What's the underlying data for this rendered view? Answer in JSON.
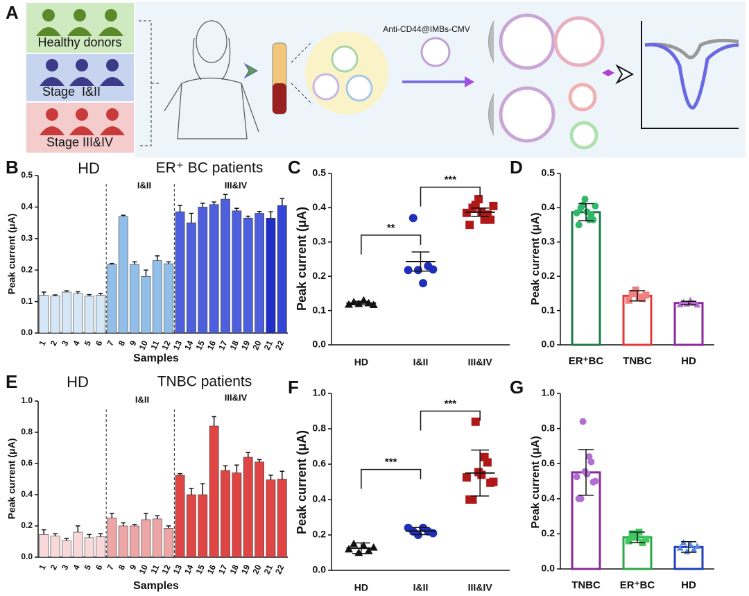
{
  "panel_a": {
    "label": "A",
    "groups": [
      "Healthy donors",
      "Stage  I&II",
      "Stage III&IV"
    ],
    "probe": "Anti-CD44@IMBs-CMV"
  },
  "chart_data": [
    {
      "type": "bar",
      "label": "B",
      "ylabel": "Peak current (μA)",
      "xlabel": "Samples",
      "annotations": [
        "HD",
        "ER⁺ BC patients",
        "I&II",
        "III&IV"
      ],
      "categories": [
        "1",
        "2",
        "3",
        "4",
        "5",
        "6",
        "7",
        "8",
        "9",
        "10",
        "11",
        "12",
        "13",
        "14",
        "15",
        "16",
        "17",
        "18",
        "19",
        "20",
        "21",
        "22"
      ],
      "values": [
        0.12,
        0.118,
        0.13,
        0.125,
        0.117,
        0.12,
        0.218,
        0.37,
        0.218,
        0.18,
        0.23,
        0.22,
        0.385,
        0.35,
        0.4,
        0.408,
        0.425,
        0.388,
        0.365,
        0.38,
        0.365,
        0.405
      ],
      "errors": [
        0.01,
        0.003,
        0.004,
        0.006,
        0.005,
        0.006,
        0.003,
        0.004,
        0.008,
        0.02,
        0.015,
        0.006,
        0.02,
        0.03,
        0.012,
        0.008,
        0.015,
        0.008,
        0.006,
        0.006,
        0.02,
        0.022
      ],
      "colors": [
        "#d5e6f6",
        "#d5e6f6",
        "#d5e6f6",
        "#d5e6f6",
        "#d5e6f6",
        "#d5e6f6",
        "#92bfea",
        "#92bfea",
        "#92bfea",
        "#92bfea",
        "#92bfea",
        "#92bfea",
        "#4d5fdc",
        "#4d5fdc",
        "#4d5fdc",
        "#4d5fdc",
        "#4d5fdc",
        "#4d5fdc",
        "#4d5fdc",
        "#4d5fdc",
        "#1f2fc8",
        "#3346d8"
      ],
      "ylim": [
        0,
        0.5
      ],
      "yticks": [
        {
          "value": 0,
          "label": "0.0"
        },
        0.1,
        0.2,
        0.3,
        0.4,
        0.5
      ]
    },
    {
      "type": "dotplot",
      "label": "C",
      "ylabel": "Peak current (μA)",
      "categories": [
        "HD",
        "I&II",
        "III&IV"
      ],
      "points": [
        [
          0.118,
          0.125,
          0.12,
          0.13,
          0.122,
          0.117
        ],
        [
          0.218,
          0.37,
          0.218,
          0.18,
          0.23,
          0.22
        ],
        [
          0.385,
          0.35,
          0.4,
          0.408,
          0.425,
          0.388,
          0.365,
          0.38,
          0.365,
          0.405
        ]
      ],
      "means": [
        0.122,
        0.243,
        0.387
      ],
      "errors": [
        0.005,
        0.028,
        0.012
      ],
      "colors": [
        "#111111",
        "#1f2fb8",
        "#b01818"
      ],
      "markers": [
        "triangle",
        "circle",
        "square"
      ],
      "significance": [
        {
          "between": [
            "HD",
            "I&II"
          ],
          "y": 0.32,
          "label": "**"
        },
        {
          "between": [
            "I&II",
            "III&IV"
          ],
          "y": 0.46,
          "label": "***"
        }
      ],
      "ylim": [
        0,
        0.5
      ],
      "yticks": [
        {
          "value": 0,
          "label": "0.0"
        },
        0.1,
        0.2,
        0.3,
        0.4,
        0.5
      ]
    },
    {
      "type": "barscatter",
      "label": "D",
      "ylabel": "Peak current (μA)",
      "categories": [
        "ER⁺BC",
        "TNBC",
        "HD"
      ],
      "values": [
        0.387,
        0.143,
        0.122
      ],
      "errors": [
        0.025,
        0.015,
        0.005
      ],
      "points": [
        [
          0.385,
          0.35,
          0.4,
          0.408,
          0.425,
          0.388,
          0.365,
          0.38,
          0.365,
          0.405
        ],
        [
          0.13,
          0.15,
          0.16,
          0.14,
          0.135,
          0.145
        ],
        [
          0.118,
          0.125,
          0.12,
          0.13,
          0.122,
          0.117
        ]
      ],
      "colors": [
        "#1e7a4a",
        "#e23a3a",
        "#8a2a9a"
      ],
      "point_colors": [
        "#2fb868",
        "#f08080",
        "#b070c8"
      ],
      "markers": [
        "circle",
        "square",
        "triangle"
      ],
      "ylim": [
        0,
        0.5
      ],
      "yticks": [
        {
          "value": 0,
          "label": "0.0"
        },
        0.1,
        0.2,
        0.3,
        0.4,
        0.5
      ]
    },
    {
      "type": "bar",
      "label": "E",
      "ylabel": "Peak current (μA)",
      "xlabel": "Samples",
      "annotations": [
        "HD",
        "TNBC patients",
        "I&II",
        "III&IV"
      ],
      "categories": [
        "1",
        "2",
        "3",
        "4",
        "5",
        "6",
        "7",
        "8",
        "9",
        "10",
        "11",
        "12",
        "13",
        "14",
        "15",
        "16",
        "17",
        "18",
        "19",
        "20",
        "21",
        "22"
      ],
      "values": [
        0.145,
        0.135,
        0.105,
        0.16,
        0.125,
        0.13,
        0.25,
        0.2,
        0.2,
        0.24,
        0.245,
        0.185,
        0.525,
        0.4,
        0.4,
        0.84,
        0.555,
        0.54,
        0.64,
        0.61,
        0.495,
        0.5
      ],
      "errors": [
        0.03,
        0.015,
        0.015,
        0.04,
        0.02,
        0.02,
        0.03,
        0.02,
        0.01,
        0.04,
        0.02,
        0.015,
        0.01,
        0.04,
        0.07,
        0.06,
        0.03,
        0.05,
        0.03,
        0.015,
        0.03,
        0.05
      ],
      "colors": [
        "#f8d8d8",
        "#f8d8d8",
        "#f8d8d8",
        "#f8d8d8",
        "#f8d8d8",
        "#f8d8d8",
        "#eea5a5",
        "#eea5a5",
        "#eea5a5",
        "#eea5a5",
        "#eea5a5",
        "#eea5a5",
        "#e04545",
        "#e04545",
        "#e04545",
        "#e04545",
        "#e04545",
        "#e04545",
        "#e04545",
        "#e04545",
        "#e04545",
        "#e04545"
      ],
      "ylim": [
        0,
        1
      ],
      "yticks": [
        {
          "value": 0,
          "label": "0.0"
        },
        0.2,
        0.4,
        0.6,
        0.8,
        {
          "value": 1,
          "label": "1.0"
        }
      ]
    },
    {
      "type": "dotplot",
      "label": "F",
      "ylabel": "Peak current (μA)",
      "categories": [
        "HD",
        "I&II",
        "III&IV"
      ],
      "points": [
        [
          0.12,
          0.15,
          0.1,
          0.14,
          0.11,
          0.13
        ],
        [
          0.24,
          0.22,
          0.2,
          0.24,
          0.22,
          0.21
        ],
        [
          0.525,
          0.4,
          0.4,
          0.84,
          0.555,
          0.54,
          0.64,
          0.61,
          0.495,
          0.5
        ]
      ],
      "means": [
        0.125,
        0.222,
        0.55
      ],
      "errors": [
        0.03,
        0.02,
        0.13
      ],
      "colors": [
        "#111111",
        "#1f2fb8",
        "#b01818"
      ],
      "markers": [
        "triangle",
        "circle",
        "square"
      ],
      "significance": [
        {
          "between": [
            "HD",
            "I&II"
          ],
          "y": 0.57,
          "label": "***"
        },
        {
          "between": [
            "I&II",
            "III&IV"
          ],
          "y": 0.9,
          "label": "***"
        }
      ],
      "ylim": [
        0,
        1
      ],
      "yticks": [
        {
          "value": 0,
          "label": "0.0"
        },
        0.2,
        0.4,
        0.6,
        0.8,
        {
          "value": 1,
          "label": "1.0"
        }
      ]
    },
    {
      "type": "barscatter",
      "label": "G",
      "ylabel": "Peak current (μA)",
      "categories": [
        "TNBC",
        "ER⁺BC",
        "HD"
      ],
      "values": [
        0.55,
        0.18,
        0.125
      ],
      "errors": [
        0.13,
        0.03,
        0.03
      ],
      "points": [
        [
          0.525,
          0.4,
          0.4,
          0.84,
          0.555,
          0.54,
          0.64,
          0.61,
          0.495,
          0.5
        ],
        [
          0.16,
          0.2,
          0.18,
          0.21,
          0.15,
          0.17
        ],
        [
          0.12,
          0.15,
          0.1,
          0.14,
          0.11,
          0.13
        ]
      ],
      "colors": [
        "#8a2a9a",
        "#2aa84a",
        "#1f3fb8"
      ],
      "point_colors": [
        "#b070d0",
        "#40c860",
        "#5a8ae0"
      ],
      "markers": [
        "circle",
        "square",
        "triangle"
      ],
      "ylim": [
        0,
        1
      ],
      "yticks": [
        {
          "value": 0,
          "label": "0.0"
        },
        0.2,
        0.4,
        0.6,
        0.8,
        {
          "value": 1,
          "label": "1.0"
        }
      ]
    }
  ]
}
